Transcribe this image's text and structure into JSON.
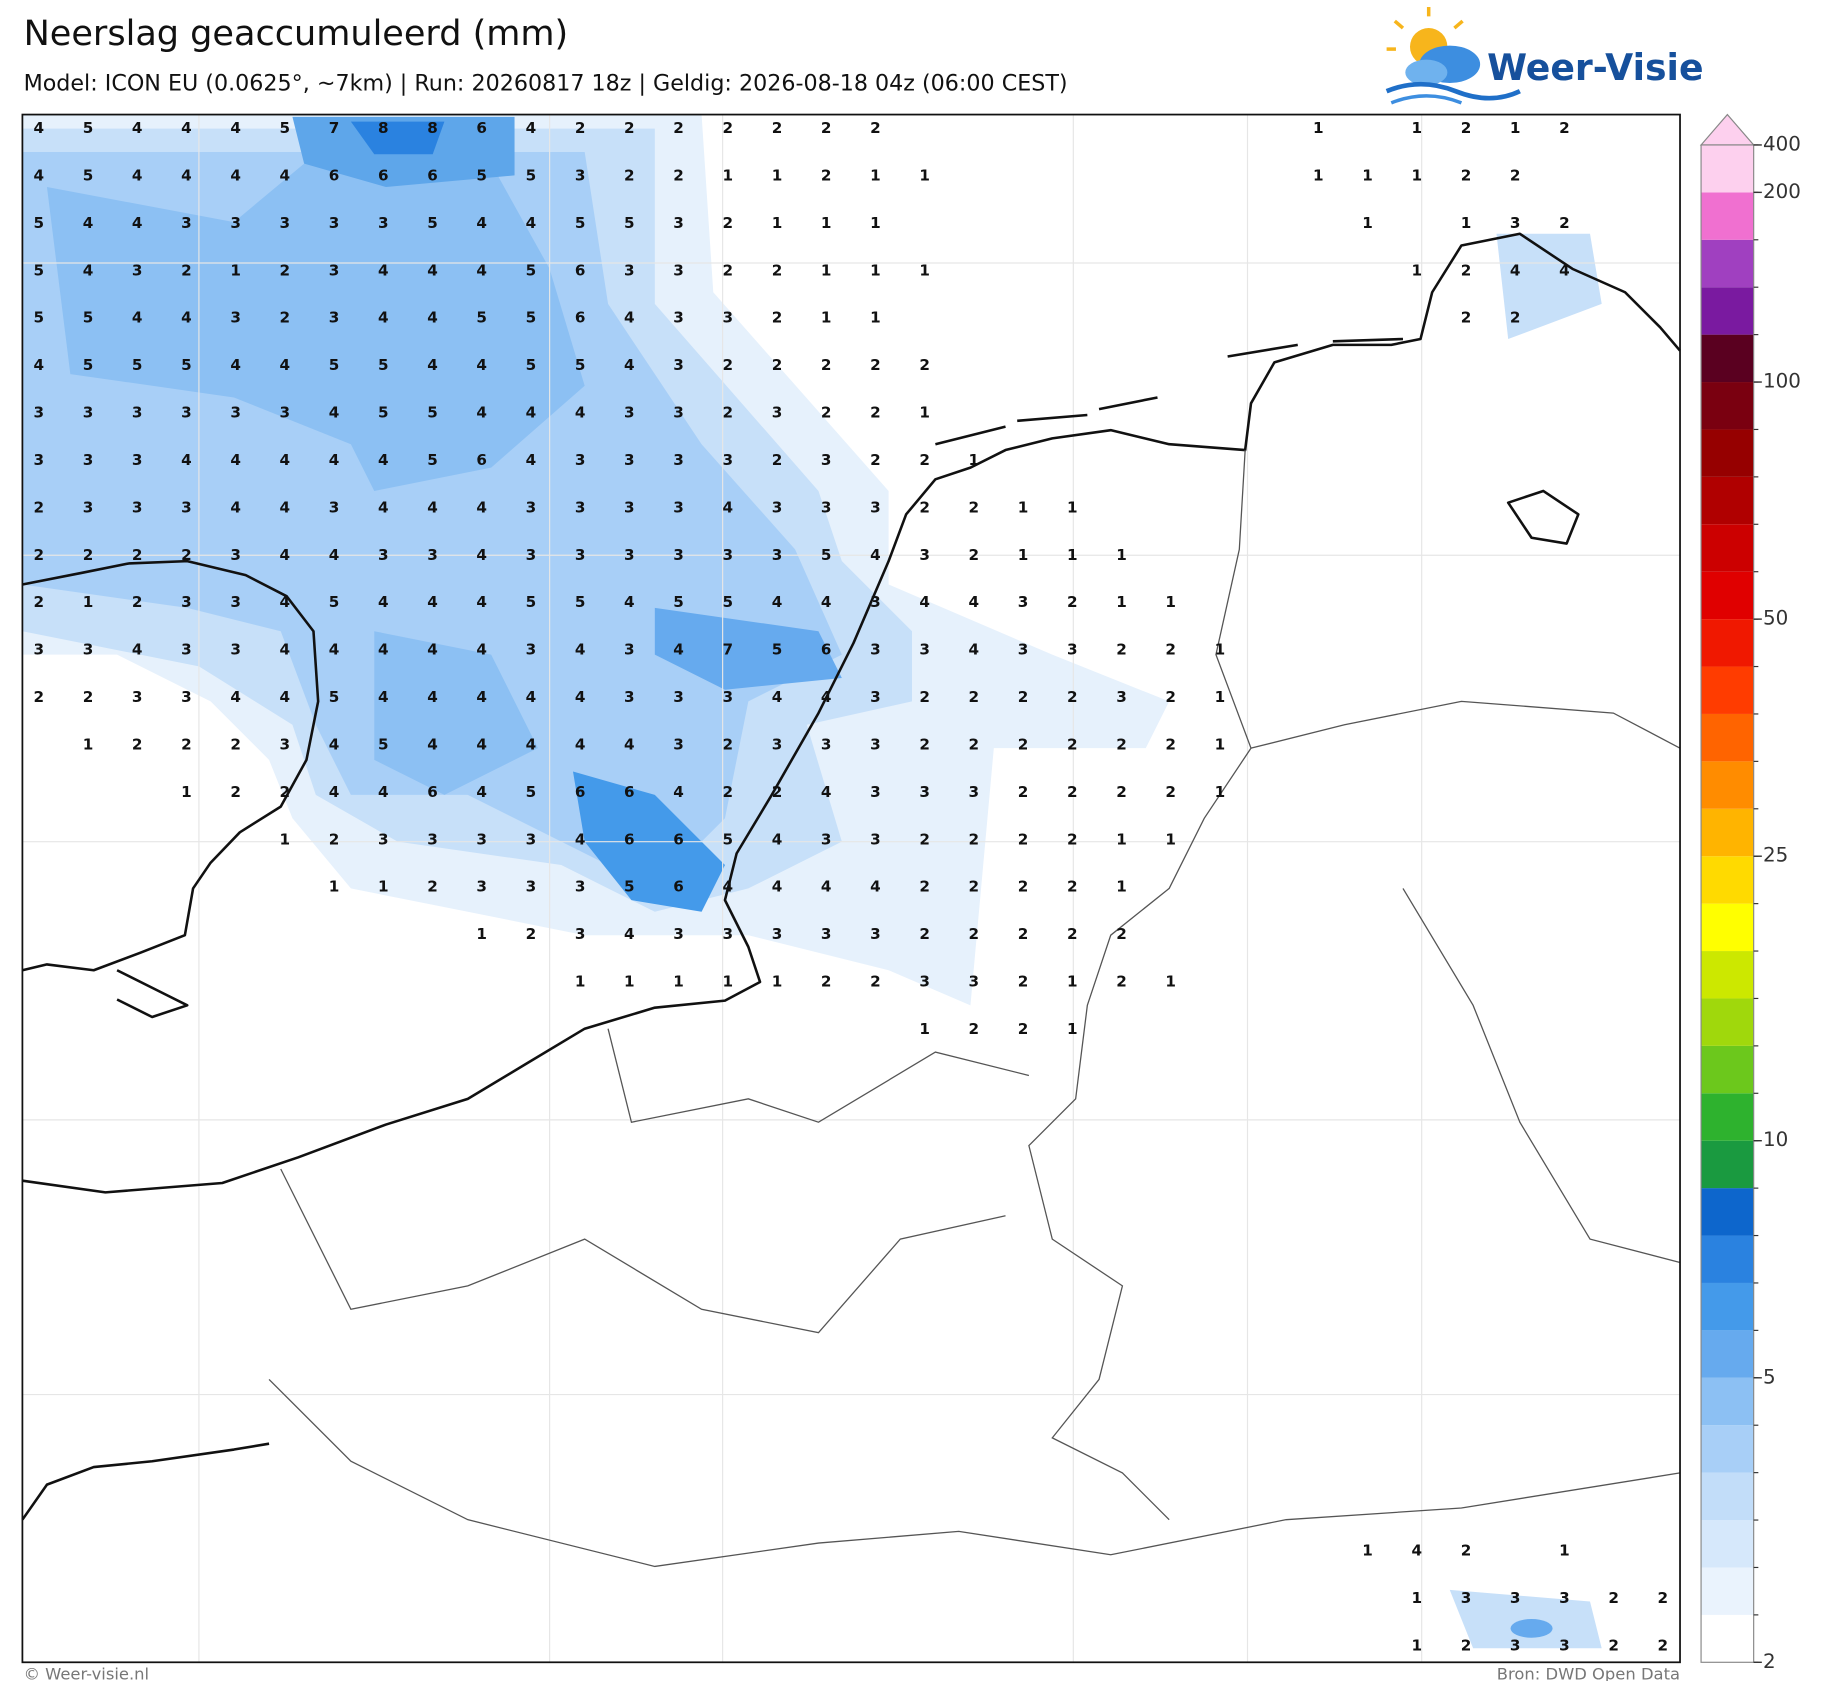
{
  "header": {
    "title": "Neerslag geaccumuleerd (mm)",
    "subtitle": "Model: ICON EU (0.0625°, ~7km)  |  Run: 20260817 18z  |  Geldig: 2026-08-18 04z (06:00 CEST)",
    "logo": "Weer-Visie"
  },
  "map": {
    "grid": {
      "rows": [
        [
          4,
          5,
          4,
          4,
          4,
          5,
          7,
          8,
          8,
          6,
          4,
          2,
          2,
          2,
          2,
          2,
          2,
          2,
          null,
          null,
          null,
          null,
          null,
          null,
          null,
          null,
          1,
          null,
          1,
          2,
          1,
          2
        ],
        [
          4,
          5,
          4,
          4,
          4,
          4,
          6,
          6,
          6,
          5,
          5,
          3,
          2,
          2,
          1,
          1,
          2,
          1,
          1,
          null,
          null,
          null,
          null,
          null,
          null,
          null,
          1,
          1,
          1,
          2,
          2
        ],
        [
          5,
          4,
          4,
          3,
          3,
          3,
          3,
          3,
          5,
          4,
          4,
          5,
          5,
          3,
          2,
          1,
          1,
          1,
          null,
          null,
          null,
          null,
          null,
          null,
          null,
          null,
          null,
          1,
          null,
          1,
          3,
          2
        ],
        [
          5,
          4,
          3,
          2,
          1,
          2,
          3,
          4,
          4,
          4,
          5,
          6,
          3,
          3,
          2,
          2,
          1,
          1,
          1,
          null,
          null,
          null,
          null,
          null,
          null,
          null,
          null,
          null,
          1,
          2,
          4,
          4
        ],
        [
          5,
          5,
          4,
          4,
          3,
          2,
          3,
          4,
          4,
          5,
          5,
          6,
          4,
          3,
          3,
          2,
          1,
          1,
          null,
          null,
          null,
          null,
          null,
          null,
          null,
          null,
          null,
          null,
          null,
          2,
          2
        ],
        [
          4,
          5,
          5,
          5,
          4,
          4,
          5,
          5,
          4,
          4,
          5,
          5,
          4,
          3,
          2,
          2,
          2,
          2,
          2
        ],
        [
          3,
          3,
          3,
          3,
          3,
          3,
          4,
          5,
          5,
          4,
          4,
          4,
          3,
          3,
          2,
          3,
          2,
          2,
          1
        ],
        [
          3,
          3,
          3,
          4,
          4,
          4,
          4,
          4,
          5,
          6,
          4,
          3,
          3,
          3,
          3,
          2,
          3,
          2,
          2,
          1
        ],
        [
          2,
          3,
          3,
          3,
          4,
          4,
          3,
          4,
          4,
          4,
          3,
          3,
          3,
          3,
          4,
          3,
          3,
          3,
          2,
          2,
          1,
          1
        ],
        [
          2,
          2,
          2,
          2,
          3,
          4,
          4,
          3,
          3,
          4,
          3,
          3,
          3,
          3,
          3,
          3,
          5,
          4,
          3,
          2,
          1,
          1,
          1
        ],
        [
          2,
          1,
          2,
          3,
          3,
          4,
          5,
          4,
          4,
          4,
          5,
          5,
          4,
          5,
          5,
          4,
          4,
          3,
          4,
          4,
          3,
          2,
          1,
          1
        ],
        [
          3,
          3,
          4,
          3,
          3,
          4,
          4,
          4,
          4,
          4,
          3,
          4,
          3,
          4,
          7,
          5,
          6,
          3,
          3,
          4,
          3,
          3,
          2,
          2,
          1
        ],
        [
          2,
          2,
          3,
          3,
          4,
          4,
          5,
          4,
          4,
          4,
          4,
          4,
          3,
          3,
          3,
          4,
          4,
          3,
          2,
          2,
          2,
          2,
          3,
          2,
          1
        ],
        [
          null,
          1,
          2,
          2,
          2,
          3,
          4,
          5,
          4,
          4,
          4,
          4,
          4,
          3,
          2,
          3,
          3,
          3,
          2,
          2,
          2,
          2,
          2,
          2,
          1
        ],
        [
          null,
          null,
          null,
          1,
          2,
          2,
          4,
          4,
          6,
          4,
          5,
          6,
          6,
          4,
          2,
          2,
          4,
          3,
          3,
          3,
          2,
          2,
          2,
          2,
          1
        ],
        [
          null,
          null,
          null,
          null,
          null,
          1,
          2,
          3,
          3,
          3,
          3,
          4,
          6,
          6,
          5,
          4,
          3,
          3,
          2,
          2,
          2,
          2,
          1,
          1
        ],
        [
          null,
          null,
          null,
          null,
          null,
          null,
          1,
          1,
          2,
          3,
          3,
          3,
          5,
          6,
          4,
          4,
          4,
          4,
          2,
          2,
          2,
          2,
          1
        ],
        [
          null,
          null,
          null,
          null,
          null,
          null,
          null,
          null,
          null,
          1,
          2,
          3,
          4,
          3,
          3,
          3,
          3,
          3,
          2,
          2,
          2,
          2,
          2
        ],
        [
          null,
          null,
          null,
          null,
          null,
          null,
          null,
          null,
          null,
          null,
          null,
          1,
          1,
          1,
          1,
          1,
          2,
          2,
          3,
          3,
          2,
          1,
          2,
          1
        ],
        [
          null,
          null,
          null,
          null,
          null,
          null,
          null,
          null,
          null,
          null,
          null,
          null,
          null,
          null,
          null,
          null,
          null,
          null,
          1,
          2,
          2,
          1
        ],
        [],
        [],
        [],
        [],
        [],
        [],
        [],
        [],
        [],
        [],
        [
          null,
          null,
          null,
          null,
          null,
          null,
          null,
          null,
          null,
          null,
          null,
          null,
          null,
          null,
          null,
          null,
          null,
          null,
          null,
          null,
          null,
          null,
          null,
          null,
          null,
          null,
          null,
          1,
          4,
          2,
          null,
          1
        ],
        [
          null,
          null,
          null,
          null,
          null,
          null,
          null,
          null,
          null,
          null,
          null,
          null,
          null,
          null,
          null,
          null,
          null,
          null,
          null,
          null,
          null,
          null,
          null,
          null,
          null,
          null,
          null,
          null,
          1,
          3,
          3,
          3,
          2,
          2
        ],
        [
          null,
          null,
          null,
          null,
          null,
          null,
          null,
          null,
          null,
          null,
          null,
          null,
          null,
          null,
          null,
          null,
          null,
          null,
          null,
          null,
          null,
          null,
          null,
          null,
          null,
          null,
          null,
          null,
          1,
          2,
          3,
          3,
          2,
          2
        ]
      ]
    }
  },
  "colorbar": {
    "levels": [
      2,
      2.5,
      3,
      3.5,
      4,
      4.5,
      5,
      6,
      7,
      8,
      9,
      10,
      12.5,
      15,
      17.5,
      20,
      22.5,
      25,
      30,
      35,
      40,
      45,
      50,
      60,
      70,
      80,
      90,
      100,
      125,
      150,
      175,
      200,
      400
    ],
    "colors": [
      "#ffffff",
      "#eaf3fd",
      "#d6e8fb",
      "#c2ddf9",
      "#a8cff7",
      "#8cc0f3",
      "#66aaee",
      "#449aea",
      "#2a82e0",
      "#0d66cc",
      "#1a9a40",
      "#2eb22e",
      "#6cc81c",
      "#a0d80c",
      "#cce800",
      "#ffff00",
      "#ffda00",
      "#ffb400",
      "#ff8c00",
      "#ff6400",
      "#ff3c00",
      "#f01800",
      "#e00000",
      "#cc0000",
      "#b00000",
      "#960000",
      "#7a0010",
      "#5a0020",
      "#7a1aa0",
      "#a040c0",
      "#f070d0",
      "#fdd0ee"
    ],
    "ticks": [
      2,
      5,
      10,
      25,
      50,
      100,
      200,
      400
    ]
  },
  "footer": {
    "credit": "© Weer-visie.nl",
    "source": "Bron: DWD Open Data"
  }
}
